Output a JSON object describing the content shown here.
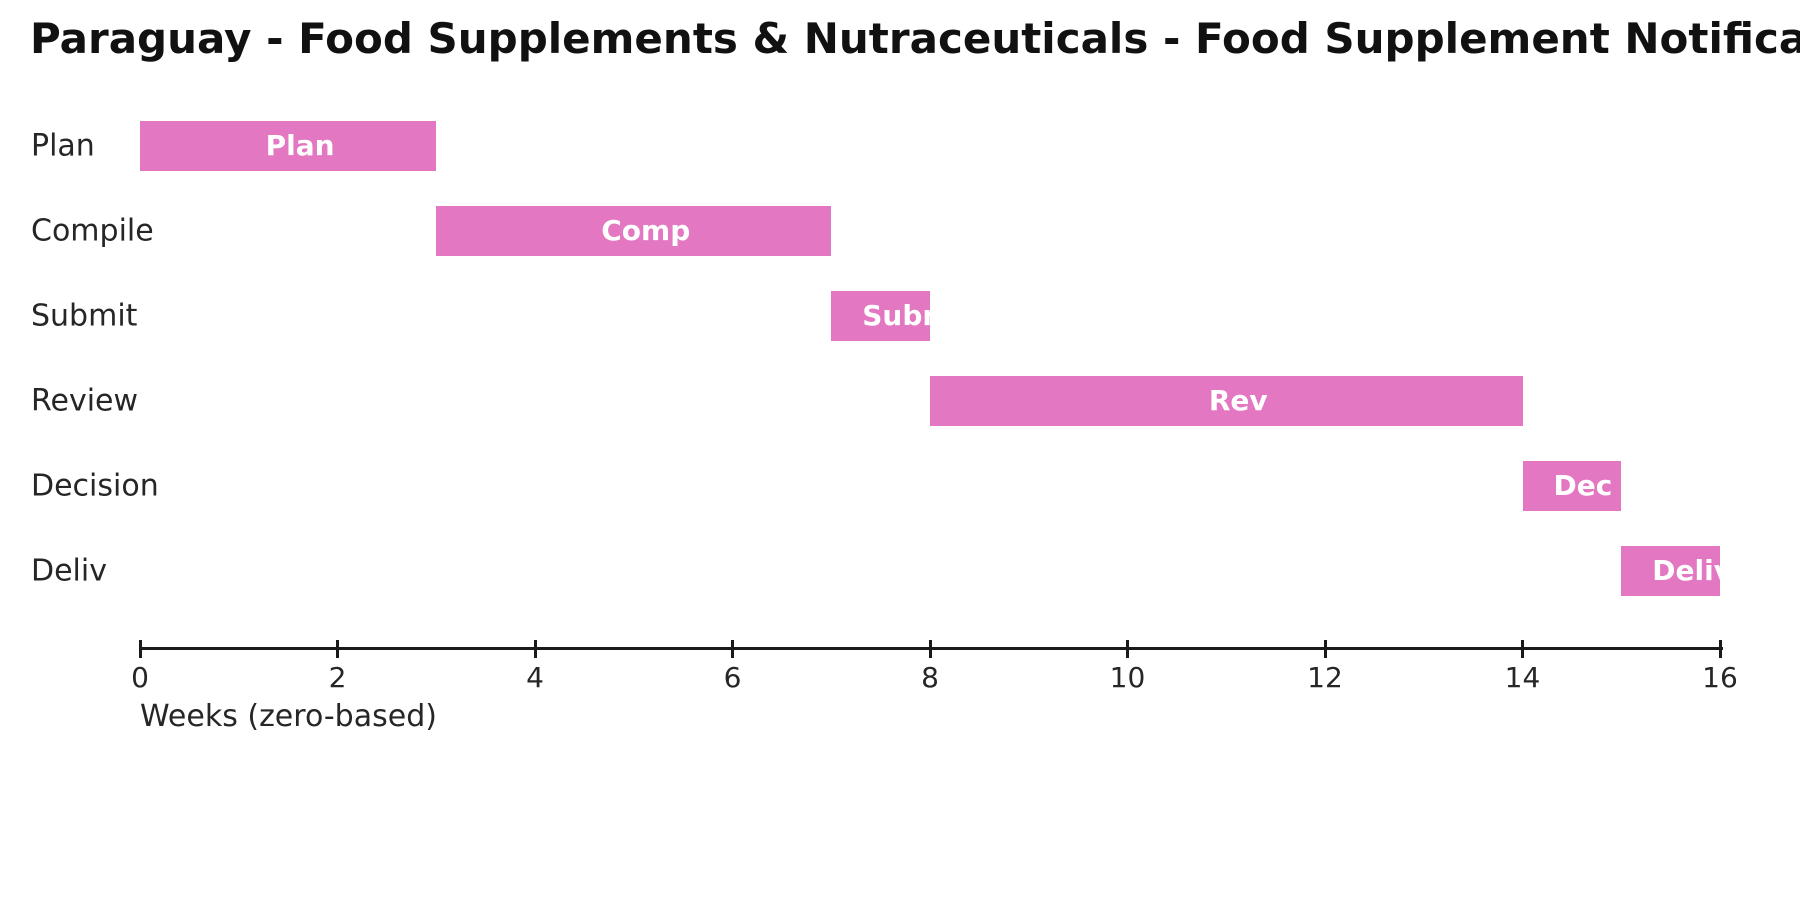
{
  "chart_data": {
    "type": "bar",
    "subtype": "gantt-horizontal",
    "title": "Paraguay - Food Supplements & Nutraceuticals - Food Supplement Notification",
    "xlabel": "Weeks (zero-based)",
    "xlim": [
      0,
      16
    ],
    "x_ticks": [
      0,
      2,
      4,
      6,
      8,
      10,
      12,
      14,
      16
    ],
    "grid": false,
    "legend": "none",
    "bar_color": "#e377c2",
    "bar_label_color": "#ffffff",
    "tasks": [
      {
        "name": "Plan",
        "bar_label": "Plan",
        "start_week": 0,
        "end_week": 3
      },
      {
        "name": "Compile",
        "bar_label": "Comp",
        "start_week": 3,
        "end_week": 7
      },
      {
        "name": "Submit",
        "bar_label": "Subm",
        "start_week": 7,
        "end_week": 8
      },
      {
        "name": "Review",
        "bar_label": "Rev",
        "start_week": 8,
        "end_week": 14
      },
      {
        "name": "Decision",
        "bar_label": "Dec",
        "start_week": 14,
        "end_week": 15
      },
      {
        "name": "Deliv",
        "bar_label": "Deliv",
        "start_week": 15,
        "end_week": 16
      }
    ]
  }
}
